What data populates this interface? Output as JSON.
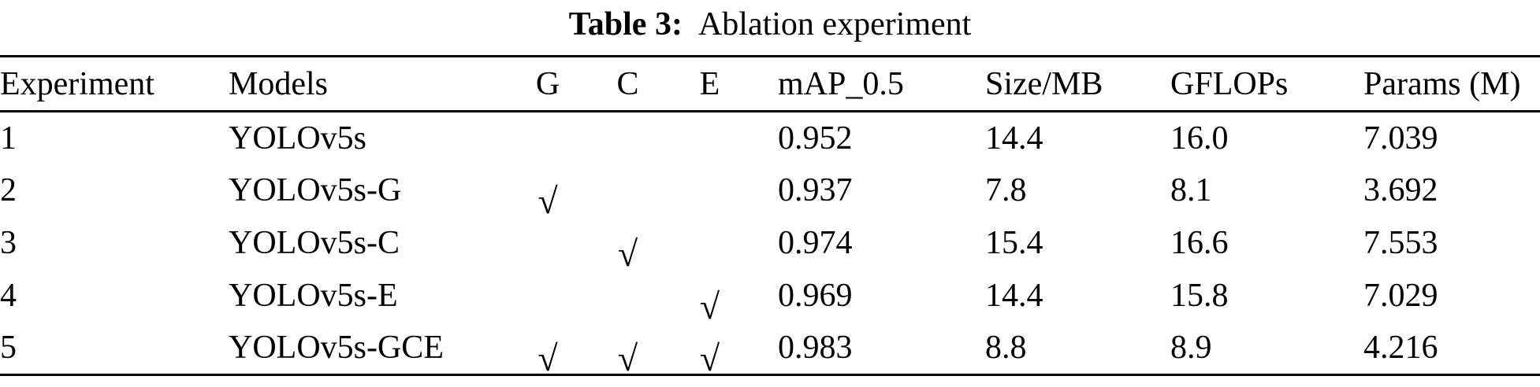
{
  "caption": {
    "label": "Table 3:",
    "title": "Ablation experiment"
  },
  "table": {
    "headers": {
      "experiment": "Experiment",
      "models": "Models",
      "g": "G",
      "c": "C",
      "e": "E",
      "map": "mAP_0.5",
      "size": "Size/MB",
      "gflops": "GFLOPs",
      "params": "Params (M)"
    },
    "checkmark_glyph": "√",
    "rows": [
      {
        "experiment": "1",
        "model": "YOLOv5s",
        "g": "",
        "c": "",
        "e": "",
        "map": "0.952",
        "size": "14.4",
        "gflops": "16.0",
        "params": "7.039"
      },
      {
        "experiment": "2",
        "model": "YOLOv5s-G",
        "g": "√",
        "c": "",
        "e": "",
        "map": "0.937",
        "size": "7.8",
        "gflops": "8.1",
        "params": "3.692"
      },
      {
        "experiment": "3",
        "model": "YOLOv5s-C",
        "g": "",
        "c": "√",
        "e": "",
        "map": "0.974",
        "size": "15.4",
        "gflops": "16.6",
        "params": "7.553"
      },
      {
        "experiment": "4",
        "model": "YOLOv5s-E",
        "g": "",
        "c": "",
        "e": "√",
        "map": "0.969",
        "size": "14.4",
        "gflops": "15.8",
        "params": "7.029"
      },
      {
        "experiment": "5",
        "model": "YOLOv5s-GCE",
        "g": "√",
        "c": "√",
        "e": "√",
        "map": "0.983",
        "size": "8.8",
        "gflops": "8.9",
        "params": "4.216"
      }
    ]
  },
  "colors": {
    "text": "#000000",
    "background": "#ffffff",
    "rule": "#000000"
  }
}
